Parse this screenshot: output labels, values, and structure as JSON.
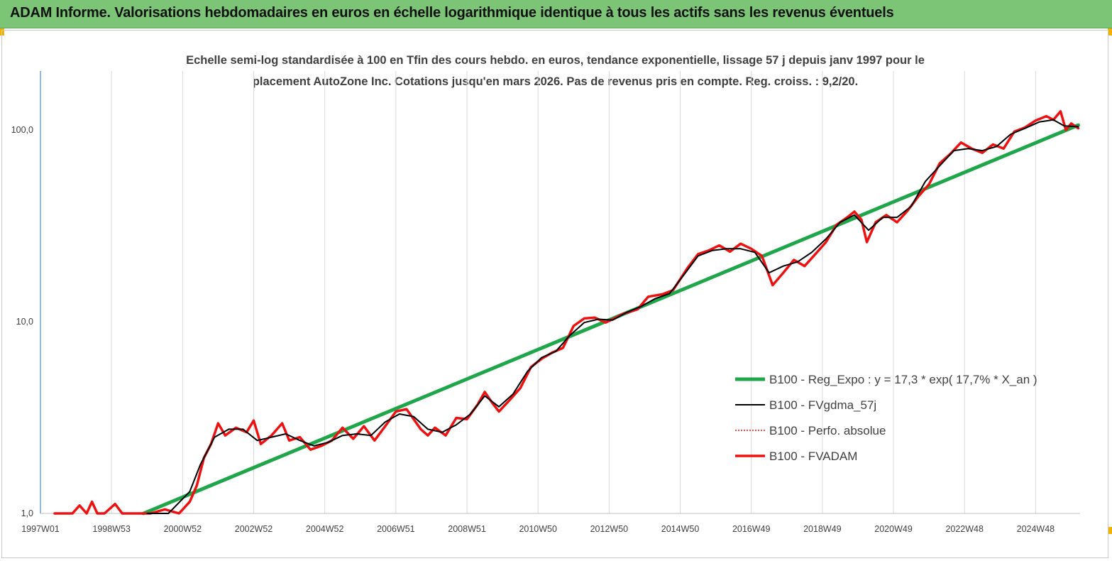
{
  "banner": {
    "title": "ADAM Informe. Valorisations hebdomadaires en euros en échelle logarithmique identique à tous les actifs sans les revenus éventuels"
  },
  "chart_data": {
    "type": "line",
    "title_line1": "Echelle semi-log standardisée à 100 en Tfin des cours hebdo. en euros, tendance exponentielle, lissage 57 j depuis janv 1997 pour le",
    "title_line2": "placement AutoZone Inc. Cotations jusqu'en mars 2026. Pas de revenus pris en compte. Reg. croiss. : 9,2/20.",
    "y_scale": "log",
    "ylim": [
      1,
      200
    ],
    "xlim": [
      1997.0,
      2026.25
    ],
    "grid": "vertical",
    "legend_position": "bottom-right",
    "y_ticks": [
      {
        "value": 1,
        "label": "1,0"
      },
      {
        "value": 10,
        "label": "10,0"
      },
      {
        "value": 100,
        "label": "100,0"
      }
    ],
    "x_ticks": [
      {
        "value": 1997.0,
        "label": "1997W01"
      },
      {
        "value": 1999.0,
        "label": "1998W53"
      },
      {
        "value": 2001.0,
        "label": "2000W52"
      },
      {
        "value": 2003.0,
        "label": "2002W52"
      },
      {
        "value": 2005.0,
        "label": "2004W52"
      },
      {
        "value": 2007.0,
        "label": "2006W51"
      },
      {
        "value": 2009.0,
        "label": "2008W51"
      },
      {
        "value": 2011.0,
        "label": "2010W50"
      },
      {
        "value": 2013.0,
        "label": "2012W50"
      },
      {
        "value": 2015.0,
        "label": "2014W50"
      },
      {
        "value": 2017.0,
        "label": "2016W49"
      },
      {
        "value": 2019.0,
        "label": "2018W49"
      },
      {
        "value": 2021.0,
        "label": "2020W49"
      },
      {
        "value": 2023.0,
        "label": "2022W48"
      },
      {
        "value": 2025.0,
        "label": "2024W48"
      }
    ],
    "series": [
      {
        "name": "B100 - Reg_Expo : y = 17,3 * exp( 17,7% *  X_an )",
        "color": "#1fa64a",
        "style": "solid",
        "points": [
          [
            1999.9,
            1.0
          ],
          [
            2026.2,
            106.0
          ]
        ]
      },
      {
        "name": "B100 - FVgdma_57j",
        "color": "#000000",
        "style": "solid",
        "points": [
          [
            2000.0,
            0.9
          ],
          [
            2000.6,
            0.95
          ],
          [
            2001.2,
            1.3
          ],
          [
            2001.5,
            1.8
          ],
          [
            2001.9,
            2.5
          ],
          [
            2002.3,
            2.75
          ],
          [
            2002.7,
            2.75
          ],
          [
            2003.1,
            2.4
          ],
          [
            2003.5,
            2.5
          ],
          [
            2003.9,
            2.6
          ],
          [
            2004.3,
            2.4
          ],
          [
            2004.7,
            2.25
          ],
          [
            2005.1,
            2.35
          ],
          [
            2005.5,
            2.55
          ],
          [
            2005.9,
            2.6
          ],
          [
            2006.3,
            2.55
          ],
          [
            2006.7,
            3.0
          ],
          [
            2007.1,
            3.3
          ],
          [
            2007.5,
            3.2
          ],
          [
            2007.9,
            2.75
          ],
          [
            2008.3,
            2.65
          ],
          [
            2008.7,
            2.9
          ],
          [
            2009.1,
            3.3
          ],
          [
            2009.5,
            4.1
          ],
          [
            2009.9,
            3.6
          ],
          [
            2010.3,
            4.2
          ],
          [
            2010.7,
            5.5
          ],
          [
            2011.1,
            6.5
          ],
          [
            2011.5,
            7.0
          ],
          [
            2011.9,
            8.5
          ],
          [
            2012.3,
            9.9
          ],
          [
            2012.7,
            10.3
          ],
          [
            2013.1,
            10.2
          ],
          [
            2013.5,
            11.2
          ],
          [
            2013.9,
            12.0
          ],
          [
            2014.3,
            13.2
          ],
          [
            2014.7,
            14.0
          ],
          [
            2015.1,
            17.5
          ],
          [
            2015.5,
            22.0
          ],
          [
            2015.9,
            23.5
          ],
          [
            2016.3,
            24.0
          ],
          [
            2016.7,
            24.0
          ],
          [
            2017.1,
            23.0
          ],
          [
            2017.5,
            18.0
          ],
          [
            2017.9,
            19.5
          ],
          [
            2018.3,
            20.5
          ],
          [
            2018.7,
            23.0
          ],
          [
            2019.1,
            27.0
          ],
          [
            2019.5,
            33.0
          ],
          [
            2019.9,
            36.0
          ],
          [
            2020.3,
            30.0
          ],
          [
            2020.7,
            35.0
          ],
          [
            2021.1,
            35.0
          ],
          [
            2021.5,
            40.0
          ],
          [
            2021.9,
            54.0
          ],
          [
            2022.3,
            65.0
          ],
          [
            2022.7,
            78.0
          ],
          [
            2023.1,
            80.0
          ],
          [
            2023.5,
            78.0
          ],
          [
            2023.9,
            82.0
          ],
          [
            2024.3,
            95.0
          ],
          [
            2024.7,
            102.0
          ],
          [
            2025.1,
            110.0
          ],
          [
            2025.5,
            113.0
          ],
          [
            2025.8,
            105.0
          ],
          [
            2026.2,
            104.0
          ]
        ]
      },
      {
        "name": "B100 - Perfo. absolue",
        "color": "#ff0000",
        "style": "dotted",
        "points": []
      },
      {
        "name": "B100 - FVADAM",
        "color": "#ee1111",
        "style": "solid",
        "points": [
          [
            1997.4,
            1.0
          ],
          [
            1997.9,
            0.95
          ],
          [
            1998.1,
            1.1
          ],
          [
            1998.3,
            1.0
          ],
          [
            1998.45,
            1.15
          ],
          [
            1998.6,
            0.97
          ],
          [
            1998.8,
            0.96
          ],
          [
            1999.1,
            1.12
          ],
          [
            1999.3,
            0.97
          ],
          [
            1999.6,
            0.98
          ],
          [
            1999.8,
            1.0
          ],
          [
            2000.1,
            0.93
          ],
          [
            2000.5,
            1.05
          ],
          [
            2000.9,
            0.9
          ],
          [
            2001.2,
            1.15
          ],
          [
            2001.4,
            1.4
          ],
          [
            2001.6,
            1.95
          ],
          [
            2001.8,
            2.3
          ],
          [
            2002.0,
            2.95
          ],
          [
            2002.2,
            2.55
          ],
          [
            2002.5,
            2.8
          ],
          [
            2002.8,
            2.65
          ],
          [
            2003.0,
            3.05
          ],
          [
            2003.2,
            2.3
          ],
          [
            2003.5,
            2.55
          ],
          [
            2003.8,
            2.95
          ],
          [
            2004.0,
            2.4
          ],
          [
            2004.3,
            2.5
          ],
          [
            2004.6,
            2.15
          ],
          [
            2004.9,
            2.25
          ],
          [
            2005.2,
            2.4
          ],
          [
            2005.5,
            2.8
          ],
          [
            2005.8,
            2.45
          ],
          [
            2006.1,
            2.85
          ],
          [
            2006.4,
            2.4
          ],
          [
            2006.7,
            2.85
          ],
          [
            2007.0,
            3.4
          ],
          [
            2007.3,
            3.5
          ],
          [
            2007.5,
            3.1
          ],
          [
            2007.7,
            2.75
          ],
          [
            2007.9,
            2.55
          ],
          [
            2008.1,
            2.8
          ],
          [
            2008.4,
            2.55
          ],
          [
            2008.7,
            3.15
          ],
          [
            2009.0,
            3.1
          ],
          [
            2009.3,
            3.7
          ],
          [
            2009.5,
            4.3
          ],
          [
            2009.7,
            3.8
          ],
          [
            2009.9,
            3.4
          ],
          [
            2010.2,
            3.9
          ],
          [
            2010.5,
            4.5
          ],
          [
            2010.8,
            5.8
          ],
          [
            2011.1,
            6.4
          ],
          [
            2011.4,
            6.9
          ],
          [
            2011.7,
            7.3
          ],
          [
            2012.0,
            9.5
          ],
          [
            2012.3,
            10.4
          ],
          [
            2012.6,
            10.5
          ],
          [
            2012.9,
            9.9
          ],
          [
            2013.1,
            10.3
          ],
          [
            2013.4,
            11.0
          ],
          [
            2013.8,
            11.6
          ],
          [
            2014.1,
            13.5
          ],
          [
            2014.5,
            13.9
          ],
          [
            2014.8,
            14.6
          ],
          [
            2015.2,
            19.0
          ],
          [
            2015.5,
            22.5
          ],
          [
            2015.8,
            23.5
          ],
          [
            2016.1,
            25.0
          ],
          [
            2016.4,
            23.2
          ],
          [
            2016.7,
            25.5
          ],
          [
            2017.0,
            24.0
          ],
          [
            2017.3,
            22.0
          ],
          [
            2017.6,
            15.5
          ],
          [
            2017.9,
            18.0
          ],
          [
            2018.2,
            21.0
          ],
          [
            2018.5,
            19.5
          ],
          [
            2018.8,
            22.5
          ],
          [
            2019.1,
            26.0
          ],
          [
            2019.4,
            32.0
          ],
          [
            2019.7,
            35.0
          ],
          [
            2019.9,
            37.5
          ],
          [
            2020.1,
            34.0
          ],
          [
            2020.25,
            26.0
          ],
          [
            2020.5,
            33.0
          ],
          [
            2020.8,
            36.0
          ],
          [
            2021.1,
            33.0
          ],
          [
            2021.4,
            38.0
          ],
          [
            2021.7,
            45.0
          ],
          [
            2022.0,
            52.0
          ],
          [
            2022.3,
            67.0
          ],
          [
            2022.6,
            75.0
          ],
          [
            2022.9,
            86.0
          ],
          [
            2023.2,
            80.0
          ],
          [
            2023.5,
            76.0
          ],
          [
            2023.8,
            84.0
          ],
          [
            2024.1,
            80.0
          ],
          [
            2024.4,
            98.0
          ],
          [
            2024.7,
            103.0
          ],
          [
            2025.0,
            112.0
          ],
          [
            2025.3,
            118.0
          ],
          [
            2025.5,
            113.0
          ],
          [
            2025.7,
            125.0
          ],
          [
            2025.85,
            100.0
          ],
          [
            2026.0,
            108.0
          ],
          [
            2026.2,
            102.0
          ]
        ]
      }
    ]
  }
}
